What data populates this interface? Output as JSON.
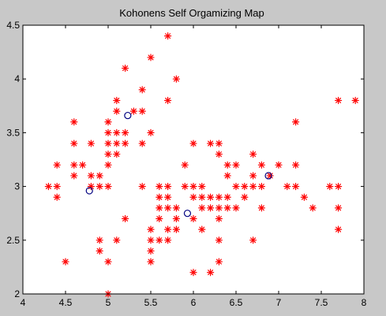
{
  "chart_data": {
    "type": "scatter",
    "title": "Kohonens Self Orgamizing Map",
    "xlabel": "",
    "ylabel": "",
    "xlim": [
      4,
      8
    ],
    "ylim": [
      2,
      4.5
    ],
    "x_ticks": [
      "4",
      "4.5",
      "5",
      "5.5",
      "6",
      "6.5",
      "7",
      "7.5",
      "8"
    ],
    "y_ticks": [
      "2",
      "2.5",
      "3",
      "3.5",
      "4",
      "4.5"
    ],
    "grid": false,
    "legend": "none",
    "series": [
      {
        "marker": "asterisk",
        "color": "#ff0000",
        "points": [
          [
            4.3,
            3.0
          ],
          [
            4.4,
            3.2
          ],
          [
            4.4,
            3.0
          ],
          [
            4.4,
            2.9
          ],
          [
            4.5,
            2.3
          ],
          [
            4.6,
            3.6
          ],
          [
            4.6,
            3.4
          ],
          [
            4.6,
            3.2
          ],
          [
            4.6,
            3.1
          ],
          [
            4.7,
            3.2
          ],
          [
            4.8,
            3.4
          ],
          [
            4.8,
            3.1
          ],
          [
            4.8,
            3.0
          ],
          [
            4.9,
            3.1
          ],
          [
            4.9,
            3.0
          ],
          [
            4.9,
            2.5
          ],
          [
            4.9,
            2.4
          ],
          [
            5.0,
            3.6
          ],
          [
            5.0,
            3.5
          ],
          [
            5.0,
            3.4
          ],
          [
            5.0,
            3.3
          ],
          [
            5.0,
            3.2
          ],
          [
            5.0,
            3.0
          ],
          [
            5.0,
            2.3
          ],
          [
            5.0,
            2.0
          ],
          [
            5.1,
            3.8
          ],
          [
            5.1,
            3.7
          ],
          [
            5.1,
            3.5
          ],
          [
            5.1,
            3.4
          ],
          [
            5.1,
            3.3
          ],
          [
            5.1,
            2.5
          ],
          [
            5.2,
            4.1
          ],
          [
            5.2,
            3.5
          ],
          [
            5.2,
            3.4
          ],
          [
            5.2,
            2.7
          ],
          [
            5.3,
            3.7
          ],
          [
            5.4,
            3.9
          ],
          [
            5.4,
            3.7
          ],
          [
            5.4,
            3.4
          ],
          [
            5.4,
            3.0
          ],
          [
            5.5,
            4.2
          ],
          [
            5.5,
            3.5
          ],
          [
            5.5,
            2.6
          ],
          [
            5.5,
            2.5
          ],
          [
            5.5,
            2.4
          ],
          [
            5.5,
            2.3
          ],
          [
            5.6,
            3.0
          ],
          [
            5.6,
            2.9
          ],
          [
            5.6,
            2.8
          ],
          [
            5.6,
            2.7
          ],
          [
            5.6,
            2.5
          ],
          [
            5.7,
            4.4
          ],
          [
            5.7,
            3.8
          ],
          [
            5.7,
            3.0
          ],
          [
            5.7,
            2.9
          ],
          [
            5.7,
            2.8
          ],
          [
            5.7,
            2.6
          ],
          [
            5.7,
            2.5
          ],
          [
            5.8,
            4.0
          ],
          [
            5.8,
            2.8
          ],
          [
            5.8,
            2.7
          ],
          [
            5.8,
            2.6
          ],
          [
            5.9,
            3.2
          ],
          [
            5.9,
            3.0
          ],
          [
            6.0,
            3.4
          ],
          [
            6.0,
            3.0
          ],
          [
            6.0,
            2.9
          ],
          [
            6.0,
            2.7
          ],
          [
            6.0,
            2.2
          ],
          [
            6.1,
            3.0
          ],
          [
            6.1,
            2.9
          ],
          [
            6.1,
            2.8
          ],
          [
            6.1,
            2.6
          ],
          [
            6.2,
            3.4
          ],
          [
            6.2,
            2.9
          ],
          [
            6.2,
            2.8
          ],
          [
            6.2,
            2.2
          ],
          [
            6.3,
            3.4
          ],
          [
            6.3,
            3.3
          ],
          [
            6.3,
            2.9
          ],
          [
            6.3,
            2.8
          ],
          [
            6.3,
            2.7
          ],
          [
            6.3,
            2.5
          ],
          [
            6.3,
            2.3
          ],
          [
            6.4,
            3.2
          ],
          [
            6.4,
            3.1
          ],
          [
            6.4,
            2.9
          ],
          [
            6.4,
            2.8
          ],
          [
            6.5,
            3.2
          ],
          [
            6.5,
            3.0
          ],
          [
            6.5,
            2.8
          ],
          [
            6.6,
            3.0
          ],
          [
            6.6,
            2.9
          ],
          [
            6.7,
            3.3
          ],
          [
            6.7,
            3.1
          ],
          [
            6.7,
            3.0
          ],
          [
            6.7,
            2.5
          ],
          [
            6.8,
            3.2
          ],
          [
            6.8,
            3.0
          ],
          [
            6.8,
            2.8
          ],
          [
            6.9,
            3.1
          ],
          [
            7.0,
            3.2
          ],
          [
            7.1,
            3.0
          ],
          [
            7.2,
            3.6
          ],
          [
            7.2,
            3.2
          ],
          [
            7.2,
            3.0
          ],
          [
            7.3,
            2.9
          ],
          [
            7.4,
            2.8
          ],
          [
            7.6,
            3.0
          ],
          [
            7.7,
            3.8
          ],
          [
            7.7,
            3.0
          ],
          [
            7.7,
            2.8
          ],
          [
            7.7,
            2.6
          ],
          [
            7.9,
            3.8
          ]
        ]
      },
      {
        "marker": "circle",
        "color": "#000080",
        "points": [
          [
            5.23,
            3.66
          ],
          [
            4.78,
            2.96
          ],
          [
            5.93,
            2.75
          ],
          [
            6.88,
            3.1
          ]
        ]
      }
    ]
  }
}
